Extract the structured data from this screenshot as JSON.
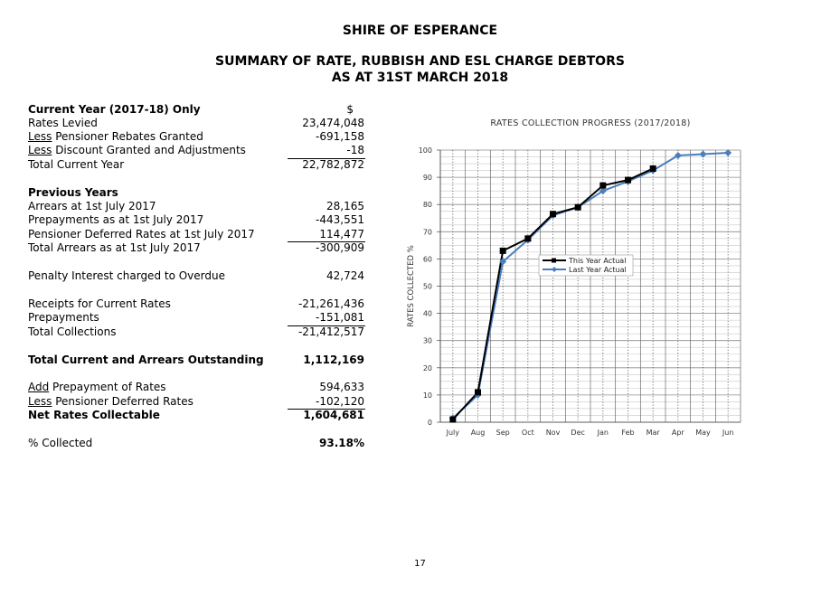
{
  "header": {
    "org": "SHIRE OF ESPERANCE",
    "title1": "SUMMARY OF RATE, RUBBISH AND ESL CHARGE DEBTORS",
    "title2": "AS AT 31ST MARCH 2018"
  },
  "summary": {
    "current_heading": "Current Year (2017-18) Only",
    "currency_symbol": "$",
    "rates_levied": {
      "label": "Rates Levied",
      "value": "23,474,048"
    },
    "pensioner_rebates": {
      "prefix": "Less",
      "label": " Pensioner Rebates Granted",
      "value": "-691,158"
    },
    "discount": {
      "prefix": "Less",
      "label": " Discount Granted and Adjustments",
      "value": "-18"
    },
    "total_current": {
      "label": "Total Current Year",
      "value": "22,782,872"
    },
    "previous_heading": "Previous Years",
    "arrears": {
      "label": "Arrears at 1st July 2017",
      "value": "28,165"
    },
    "prepayments_july": {
      "label": "Prepayments as at 1st July 2017",
      "value": "-443,551"
    },
    "pensioner_deferred": {
      "label": "Pensioner Deferred Rates at 1st July 2017",
      "value": "114,477"
    },
    "total_arrears": {
      "label": "Total Arrears as at 1st July 2017",
      "value": "-300,909"
    },
    "penalty": {
      "label": "Penalty Interest charged to Overdue",
      "value": "42,724"
    },
    "receipts": {
      "label": "Receipts for Current Rates",
      "value": "-21,261,436"
    },
    "prepayments": {
      "label": "Prepayments",
      "value": "-151,081"
    },
    "total_collections": {
      "label": "Total Collections",
      "value": "-21,412,517"
    },
    "outstanding": {
      "label": "Total Current and Arrears Outstanding",
      "value": "1,112,169"
    },
    "add_prepayment": {
      "prefix": "Add",
      "label": " Prepayment of Rates",
      "value": "594,633"
    },
    "less_deferred": {
      "prefix": "Less",
      "label": " Pensioner Deferred Rates",
      "value": "-102,120"
    },
    "net_collectable": {
      "label": "Net Rates Collectable",
      "value": "1,604,681"
    },
    "pct_collected": {
      "label": "% Collected",
      "value": "93.18%"
    }
  },
  "page_number": "17",
  "chart_data": {
    "type": "line",
    "title": "RATES COLLECTION PROGRESS (2017/2018)",
    "ylabel": "RATES COLLECTED %",
    "xlabel": "",
    "categories": [
      "July",
      "Aug",
      "Sep",
      "Oct",
      "Nov",
      "Dec",
      "Jan",
      "Feb",
      "Mar",
      "Apr",
      "May",
      "Jun"
    ],
    "ylim": [
      0,
      100
    ],
    "yticks": [
      0,
      10,
      20,
      30,
      40,
      50,
      60,
      70,
      80,
      90,
      100
    ],
    "legend_position": "center-right",
    "series": [
      {
        "name": "This Year Actual",
        "color": "#000000",
        "marker": "square",
        "values": [
          1,
          11,
          63,
          67.5,
          76.5,
          79,
          87,
          89,
          93.2,
          null,
          null,
          null
        ]
      },
      {
        "name": "Last Year Actual",
        "color": "#4a7ebf",
        "marker": "diamond",
        "values": [
          1.5,
          10,
          59,
          67,
          76,
          79,
          85,
          88.5,
          92.5,
          98,
          98.5,
          99
        ]
      }
    ]
  }
}
